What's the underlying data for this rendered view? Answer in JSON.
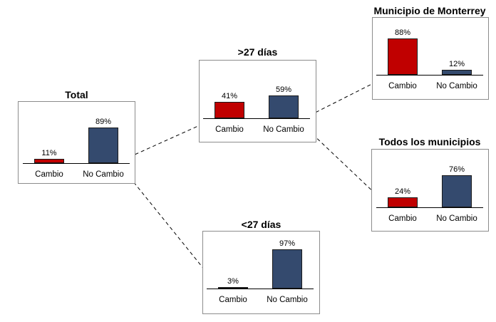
{
  "colors": {
    "cambio": "#c00000",
    "no_cambio": "#344a6e",
    "border": "#8c8c8c",
    "connector": "#000000"
  },
  "chart_data": [
    {
      "id": "total",
      "type": "bar",
      "title": "Total",
      "categories": [
        "Cambio",
        "No Cambio"
      ],
      "values": [
        11,
        89
      ],
      "labels": [
        "11%",
        "89%"
      ],
      "ylim": [
        0,
        100
      ]
    },
    {
      "id": "gt27",
      "type": "bar",
      "title": ">27 días",
      "categories": [
        "Cambio",
        "No Cambio"
      ],
      "values": [
        41,
        59
      ],
      "labels": [
        "41%",
        "59%"
      ],
      "ylim": [
        0,
        100
      ]
    },
    {
      "id": "lt27",
      "type": "bar",
      "title": "<27 días",
      "categories": [
        "Cambio",
        "No Cambio"
      ],
      "values": [
        3,
        97
      ],
      "labels": [
        "3%",
        "97%"
      ],
      "ylim": [
        0,
        100
      ]
    },
    {
      "id": "monterrey",
      "type": "bar",
      "title": "Municipio de Monterrey",
      "categories": [
        "Cambio",
        "No Cambio"
      ],
      "values": [
        88,
        12
      ],
      "labels": [
        "88%",
        "12%"
      ],
      "ylim": [
        0,
        100
      ]
    },
    {
      "id": "todos",
      "type": "bar",
      "title": "Todos los municipios",
      "categories": [
        "Cambio",
        "No Cambio"
      ],
      "values": [
        24,
        76
      ],
      "labels": [
        "24%",
        "76%"
      ],
      "ylim": [
        0,
        100
      ]
    }
  ],
  "connectors": [
    {
      "from": "total",
      "to": "gt27"
    },
    {
      "from": "total",
      "to": "lt27"
    },
    {
      "from": "gt27",
      "to": "monterrey"
    },
    {
      "from": "gt27",
      "to": "todos"
    }
  ]
}
